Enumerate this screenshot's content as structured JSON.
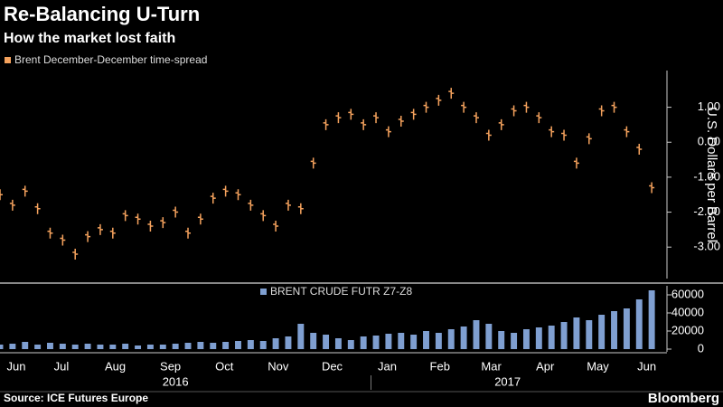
{
  "chart_data": {
    "type": "ohlc-volume",
    "title": "Re-Balancing U-Turn",
    "subtitle": "How the market lost faith",
    "x": [
      0,
      1,
      2,
      3,
      4,
      5,
      6,
      7,
      8,
      9,
      10,
      11,
      12,
      13,
      14,
      15,
      16,
      17,
      18,
      19,
      20,
      21,
      22,
      23,
      24,
      25,
      26,
      27,
      28,
      29,
      30,
      31,
      32,
      33,
      34,
      35,
      36,
      37,
      38,
      39,
      40,
      41,
      42,
      43,
      44,
      45,
      46,
      47,
      48,
      49,
      50,
      51,
      52
    ],
    "xlim": [
      0,
      53
    ],
    "xticks": [
      {
        "value": 1.3,
        "label": "Jun"
      },
      {
        "value": 4.9,
        "label": "Jul"
      },
      {
        "value": 9.2,
        "label": "Aug"
      },
      {
        "value": 13.6,
        "label": "Sep"
      },
      {
        "value": 17.9,
        "label": "Oct"
      },
      {
        "value": 22.2,
        "label": "Nov"
      },
      {
        "value": 26.5,
        "label": "Dec"
      },
      {
        "value": 30.9,
        "label": "Jan"
      },
      {
        "value": 35.1,
        "label": "Feb"
      },
      {
        "value": 39.2,
        "label": "Mar"
      },
      {
        "value": 43.5,
        "label": "Apr"
      },
      {
        "value": 47.7,
        "label": "May"
      },
      {
        "value": 51.6,
        "label": "Jun"
      }
    ],
    "years": [
      {
        "value": 14,
        "label": "2016"
      },
      {
        "value": 40.5,
        "label": "2017"
      }
    ],
    "series": [
      {
        "name": "Brent December-December time-spread",
        "color": "#f5a25d",
        "values": [
          -1.5,
          -1.8,
          -1.4,
          -1.9,
          -2.6,
          -2.8,
          -3.2,
          -2.7,
          -2.5,
          -2.6,
          -2.1,
          -2.2,
          -2.4,
          -2.3,
          -2.0,
          -2.6,
          -2.2,
          -1.6,
          -1.4,
          -1.5,
          -1.8,
          -2.1,
          -2.4,
          -1.8,
          -1.9,
          -0.6,
          0.5,
          0.7,
          0.8,
          0.5,
          0.7,
          0.3,
          0.6,
          0.8,
          1.0,
          1.2,
          1.4,
          1.0,
          0.7,
          0.2,
          0.5,
          0.9,
          1.0,
          0.7,
          0.3,
          0.2,
          -0.6,
          0.1,
          0.9,
          1.0,
          0.3,
          -0.2,
          -1.3
        ]
      },
      {
        "name": "BRENT CRUDE FUTR Z7-Z8",
        "color": "#7f9fd1",
        "axis": "y2",
        "values": [
          5000,
          6000,
          8000,
          5000,
          7000,
          6000,
          5000,
          6000,
          5000,
          5000,
          6000,
          4000,
          5000,
          5000,
          6000,
          7000,
          8000,
          7000,
          8000,
          9000,
          10000,
          9000,
          12000,
          14000,
          28000,
          18000,
          16000,
          12000,
          10000,
          14000,
          15000,
          17000,
          18000,
          16000,
          20000,
          18000,
          22000,
          25000,
          32000,
          28000,
          20000,
          18000,
          22000,
          24000,
          26000,
          30000,
          35000,
          32000,
          38000,
          42000,
          45000,
          55000,
          65000
        ]
      }
    ],
    "ylim": [
      -3.9,
      2.05
    ],
    "yticks": [
      {
        "value": 1,
        "label": "1.00"
      },
      {
        "value": 0,
        "label": "0.00"
      },
      {
        "value": -1,
        "label": "-1.00"
      },
      {
        "value": -2,
        "label": "-2.00"
      },
      {
        "value": -3,
        "label": "-3.00"
      }
    ],
    "ylabel": "U.S. Dollars per Barrel",
    "y2lim": [
      -3000,
      70000
    ],
    "y2ticks": [
      0,
      20000,
      40000,
      60000
    ],
    "source": "Source: ICE Futures Europe",
    "brand": "Bloomberg"
  }
}
